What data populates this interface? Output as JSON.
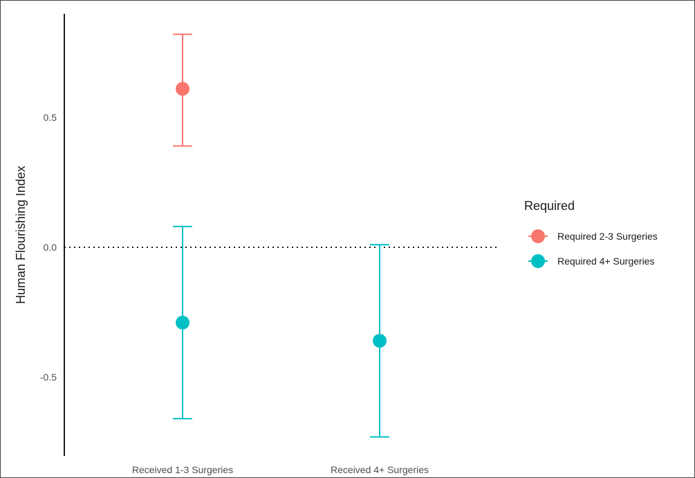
{
  "chart_data": {
    "type": "scatter",
    "title": "",
    "xlabel": "",
    "ylabel": "Human Flourishing Index",
    "categories": [
      "Received 1-3 Surgeries",
      "Received 4+ Surgeries"
    ],
    "ylim": [
      -0.8,
      0.9
    ],
    "yticks": [
      {
        "value": 0.5,
        "label": "0.5"
      },
      {
        "value": 0.0,
        "label": "0.0"
      },
      {
        "value": -0.5,
        "label": "-0.5"
      }
    ],
    "reference_line": {
      "value": 0.0,
      "style": "dotted"
    },
    "grid": false,
    "legend": {
      "title": "Required",
      "position": "right"
    },
    "series": [
      {
        "name": "Required 2-3 Surgeries",
        "color": "#F8766D",
        "points": [
          {
            "category": "Received 1-3 Surgeries",
            "y": 0.61,
            "lower": 0.39,
            "upper": 0.82
          }
        ]
      },
      {
        "name": "Required 4+ Surgeries",
        "color": "#00BFC4",
        "points": [
          {
            "category": "Received 1-3 Surgeries",
            "y": -0.29,
            "lower": -0.66,
            "upper": 0.08
          },
          {
            "category": "Received 4+ Surgeries",
            "y": -0.36,
            "lower": -0.73,
            "upper": 0.01
          }
        ]
      }
    ]
  }
}
